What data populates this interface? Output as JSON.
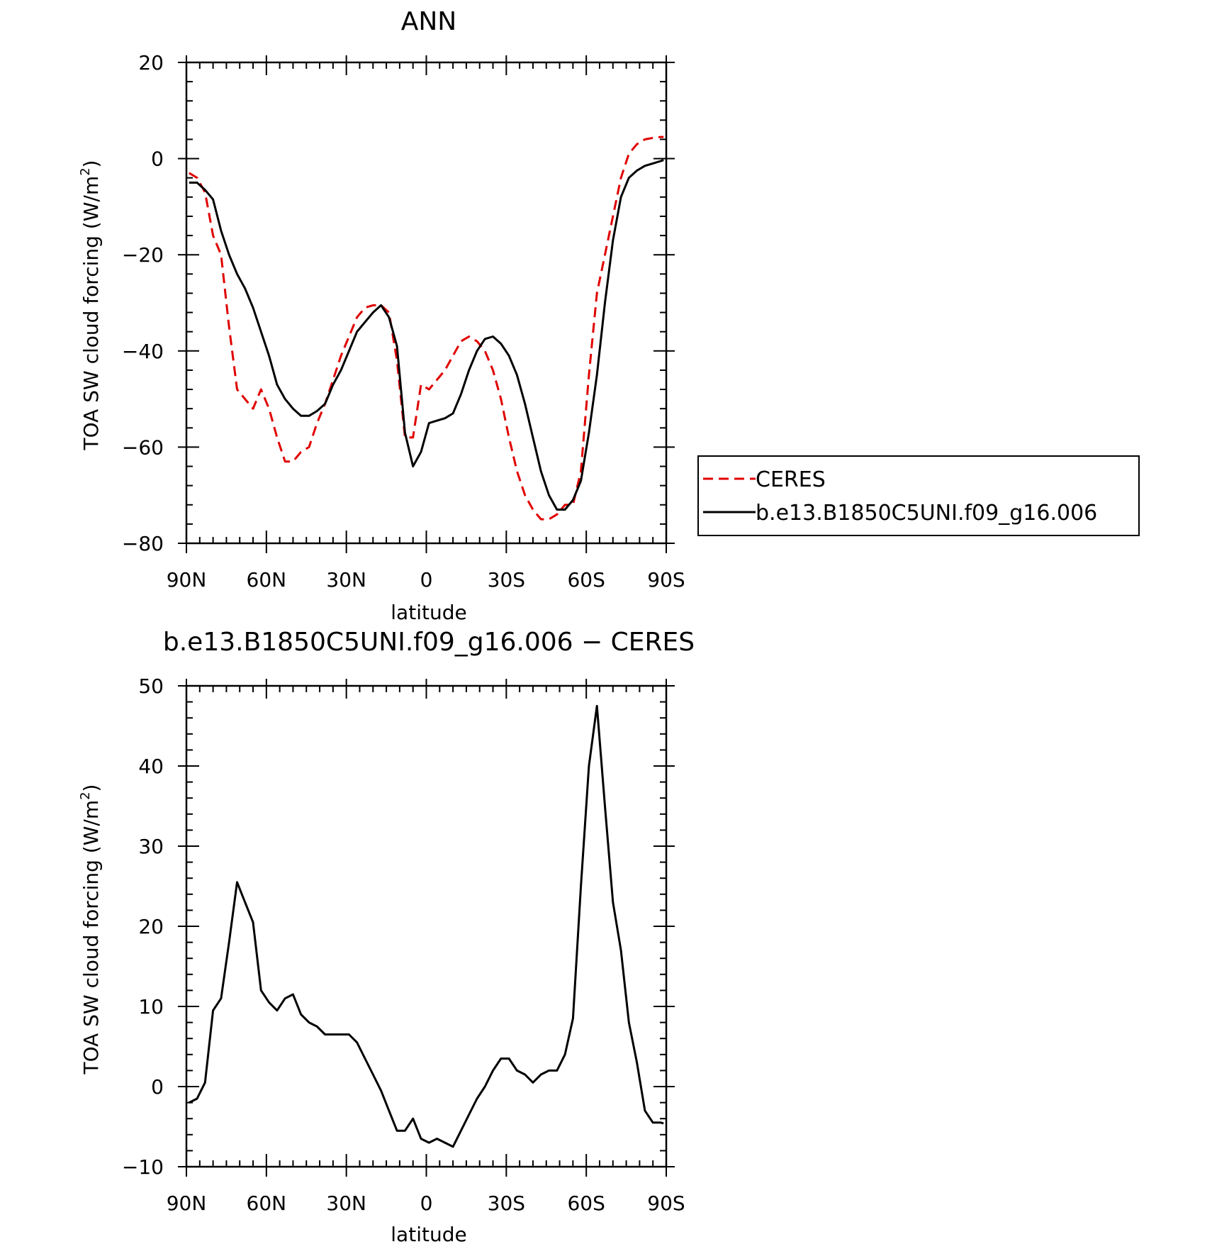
{
  "chart_data": [
    {
      "type": "line",
      "title": "ANN",
      "xlabel": "latitude",
      "ylabel": "TOA SW cloud forcing (W/m",
      "ylabel_superscript": "2",
      "ylabel_suffix": ")",
      "x_tick_values": [
        90,
        60,
        30,
        0,
        -30,
        -60,
        -90
      ],
      "x_tick_labels": [
        "90N",
        "60N",
        "30N",
        "0",
        "30S",
        "60S",
        "90S"
      ],
      "xlim": [
        90,
        -90
      ],
      "ylim": [
        -80,
        20
      ],
      "y_ticks": [
        20,
        0,
        -20,
        -40,
        -60,
        -80
      ],
      "y_tick_labels": [
        "20",
        "0",
        "−20",
        "−40",
        "−60",
        "−80"
      ],
      "legend": {
        "placement": "right",
        "entries": [
          "CERES",
          "b.e13.B1850C5UNI.f09_g16.006"
        ]
      },
      "series": [
        {
          "name": "CERES",
          "color": "#e00000",
          "style": "dashed",
          "x": [
            89,
            86,
            83,
            80,
            77,
            74,
            71,
            68,
            65,
            62,
            59,
            56,
            53,
            50,
            47,
            44,
            41,
            38,
            35,
            32,
            29,
            26,
            23,
            20,
            17,
            14,
            11,
            8,
            5,
            2,
            -1,
            -4,
            -7,
            -10,
            -13,
            -16,
            -19,
            -22,
            -25,
            -28,
            -31,
            -34,
            -37,
            -40,
            -43,
            -46,
            -49,
            -52,
            -55,
            -58,
            -61,
            -64,
            -67,
            -70,
            -73,
            -76,
            -79,
            -82,
            -85,
            -88,
            -89
          ],
          "y": [
            -3,
            -4,
            -7,
            -16,
            -20,
            -35,
            -48,
            -50,
            -52,
            -48,
            -52,
            -58,
            -63,
            -63,
            -61,
            -60,
            -55,
            -51,
            -46,
            -41,
            -37,
            -33,
            -31,
            -30.5,
            -30.5,
            -32,
            -42,
            -58,
            -58,
            -47,
            -48,
            -46,
            -44,
            -41,
            -38,
            -37,
            -38,
            -40,
            -44,
            -50,
            -58,
            -65,
            -70,
            -73,
            -75,
            -75,
            -74,
            -72,
            -72,
            -65,
            -45,
            -28,
            -20,
            -12,
            -4,
            1,
            3,
            4,
            4.3,
            4.5,
            4.5
          ]
        },
        {
          "name": "b.e13.B1850C5UNI.f09_g16.006",
          "color": "#000000",
          "style": "solid",
          "x": [
            89,
            86,
            83,
            80,
            77,
            74,
            71,
            68,
            65,
            62,
            59,
            56,
            53,
            50,
            47,
            44,
            41,
            38,
            35,
            32,
            29,
            26,
            23,
            20,
            17,
            14,
            11,
            8,
            5,
            2,
            -1,
            -4,
            -7,
            -10,
            -13,
            -16,
            -19,
            -22,
            -25,
            -28,
            -31,
            -34,
            -37,
            -40,
            -43,
            -46,
            -49,
            -52,
            -55,
            -58,
            -61,
            -64,
            -67,
            -70,
            -73,
            -76,
            -79,
            -82,
            -85,
            -88,
            -89
          ],
          "y": [
            -5,
            -5,
            -6.5,
            -8.5,
            -15,
            -20,
            -24,
            -27,
            -31,
            -36,
            -41,
            -47,
            -50,
            -52,
            -53.5,
            -53.5,
            -52.5,
            -51,
            -47,
            -44,
            -40,
            -36,
            -34,
            -32,
            -30.5,
            -33,
            -39,
            -57,
            -64,
            -61,
            -55,
            -54.5,
            -54,
            -53,
            -49,
            -44,
            -40,
            -37.5,
            -37,
            -38.5,
            -41,
            -45,
            -51,
            -58,
            -65,
            -70,
            -73,
            -73,
            -71,
            -67,
            -57,
            -45,
            -30,
            -17,
            -8,
            -4,
            -2.5,
            -1.5,
            -1,
            -0.5,
            -0.3
          ]
        }
      ]
    },
    {
      "type": "line",
      "title": "b.e13.B1850C5UNI.f09_g16.006 − CERES",
      "xlabel": "latitude",
      "ylabel": "TOA SW cloud forcing (W/m",
      "ylabel_superscript": "2",
      "ylabel_suffix": ")",
      "x_tick_values": [
        90,
        60,
        30,
        0,
        -30,
        -60,
        -90
      ],
      "x_tick_labels": [
        "90N",
        "60N",
        "30N",
        "0",
        "30S",
        "60S",
        "90S"
      ],
      "xlim": [
        90,
        -90
      ],
      "ylim": [
        -10,
        50
      ],
      "y_ticks": [
        50,
        40,
        30,
        20,
        10,
        0,
        -10
      ],
      "y_tick_labels": [
        "50",
        "40",
        "30",
        "20",
        "10",
        "0",
        "−10"
      ],
      "series": [
        {
          "color": "#000000",
          "style": "solid",
          "x": [
            89,
            86,
            83,
            80,
            77,
            74,
            71,
            68,
            65,
            62,
            59,
            56,
            53,
            50,
            47,
            44,
            41,
            38,
            35,
            32,
            29,
            26,
            23,
            20,
            17,
            14,
            11,
            8,
            5,
            2,
            -1,
            -4,
            -7,
            -10,
            -13,
            -16,
            -19,
            -22,
            -25,
            -28,
            -31,
            -34,
            -37,
            -40,
            -43,
            -46,
            -49,
            -52,
            -55,
            -58,
            -61,
            -64,
            -67,
            -70,
            -73,
            -76,
            -79,
            -82,
            -85,
            -88,
            -89
          ],
          "y": [
            -2,
            -1.5,
            0.5,
            9.5,
            11,
            18,
            25.5,
            23,
            20.5,
            12,
            10.5,
            9.5,
            11,
            11.5,
            9,
            8,
            7.5,
            6.5,
            6.5,
            6.5,
            6.5,
            5.5,
            3.5,
            1.5,
            -0.5,
            -3,
            -5.5,
            -5.5,
            -4,
            -6.5,
            -7,
            -6.5,
            -7,
            -7.5,
            -5.5,
            -3.5,
            -1.5,
            0,
            2,
            3.5,
            3.5,
            2,
            1.5,
            0.5,
            1.5,
            2,
            2,
            4,
            8.5,
            25,
            40,
            47.5,
            35,
            23,
            17,
            8,
            3,
            -3,
            -4.5,
            -4.5,
            -4.6
          ]
        }
      ]
    }
  ]
}
